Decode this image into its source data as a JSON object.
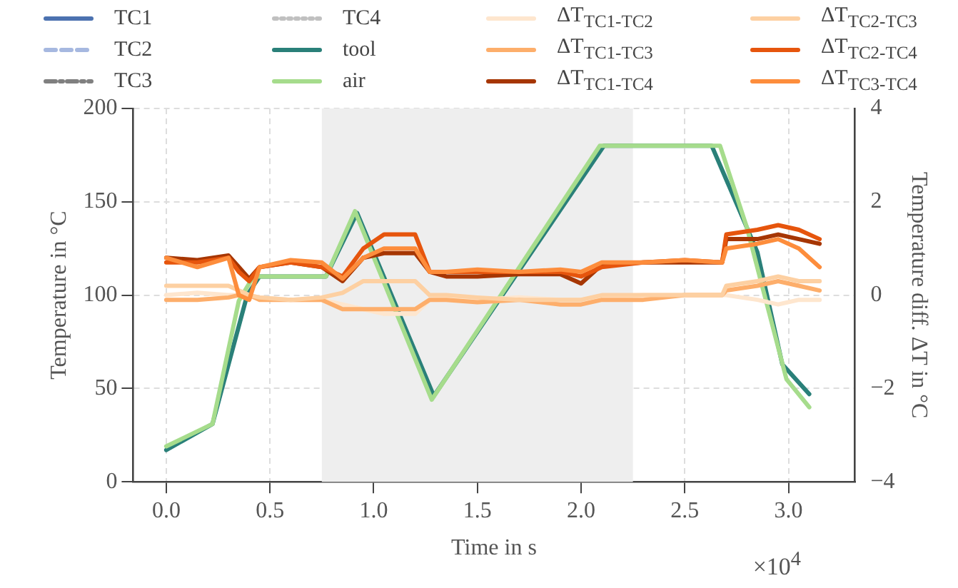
{
  "chart_data": {
    "type": "line",
    "xlabel": "Time in s",
    "ylabel": "Temperature in °C",
    "y2label": "Temperature diff. ΔT in °C",
    "xlim": [
      -0.16,
      3.32
    ],
    "xticks": [
      {
        "value": 0,
        "label": "0.0"
      },
      0.5,
      {
        "value": 1,
        "label": "1.0"
      },
      1.5,
      {
        "value": 2,
        "label": "2.0"
      },
      2.5,
      {
        "value": 3,
        "label": "3.0"
      }
    ],
    "ylim": [
      0,
      200
    ],
    "yticks": [
      0,
      50,
      100,
      150,
      200
    ],
    "y2lim": [
      -4,
      4
    ],
    "y2ticks": [
      -4,
      -2,
      0,
      2,
      4
    ],
    "grid": true,
    "legend": "top",
    "marker": "none",
    "annotations": [
      "×10$^{4}$"
    ],
    "bands": [
      {
        "axis": "x",
        "from": 0.75,
        "to": 2.25,
        "color": "#eeeeee"
      }
    ],
    "series": [
      {
        "name": "TC1",
        "color": "#4c72b0",
        "line_style": "solid"
      },
      {
        "name": "TC2",
        "color": "#a6b8e0",
        "line_style": "dashed"
      },
      {
        "name": "TC3",
        "color": "#808080",
        "line_style": "dashdot"
      },
      {
        "name": "TC4",
        "color": "#c0c0c0",
        "line_style": "dotted"
      },
      {
        "name": "tool",
        "color": "#2a8079",
        "line_style": "solid",
        "x": [
          0,
          0.223,
          0.39,
          0.45,
          0.77,
          0.92,
          1.29,
          2.11,
          2.63,
          2.85,
          2.97,
          3.1
        ],
        "values": [
          17,
          31,
          100,
          110,
          110,
          144,
          46,
          180,
          180,
          123,
          63,
          47
        ]
      },
      {
        "name": "air",
        "color": "#a6dc8c",
        "line_style": "solid",
        "x": [
          0,
          0.223,
          0.35,
          0.42,
          0.77,
          0.91,
          1.28,
          2.09,
          2.67,
          2.8,
          2.99,
          3.1
        ],
        "values": [
          19,
          31,
          97,
          110,
          110,
          145,
          44,
          180,
          180,
          136,
          55,
          40
        ]
      },
      {
        "name": "ΔT$_{TC1-TC2}$",
        "color": "#fee6ce",
        "line_style": "solid",
        "axis": "y2",
        "x": [
          0,
          0.15,
          0.3,
          0.35,
          0.4,
          0.45,
          0.6,
          0.75,
          0.85,
          0.95,
          1.05,
          1.2,
          1.27,
          1.35,
          1.5,
          1.7,
          1.9,
          2.0,
          2.1,
          2.3,
          2.5,
          2.68,
          2.7,
          2.85,
          2.95,
          3.05,
          3.15
        ],
        "values": [
          0.0,
          0.05,
          0.0,
          0.0,
          0.0,
          -0.05,
          -0.1,
          -0.1,
          -0.2,
          -0.3,
          -0.4,
          -0.4,
          -0.1,
          -0.05,
          -0.1,
          -0.05,
          -0.1,
          -0.1,
          -0.05,
          0.0,
          0.0,
          0.0,
          0.0,
          -0.1,
          -0.2,
          -0.1,
          -0.1
        ]
      },
      {
        "name": "ΔT$_{TC1-TC3}$",
        "color": "#fdae6b",
        "line_style": "solid",
        "axis": "y2",
        "x": [
          0,
          0.15,
          0.3,
          0.35,
          0.4,
          0.45,
          0.6,
          0.75,
          0.85,
          0.95,
          1.05,
          1.2,
          1.27,
          1.35,
          1.5,
          1.7,
          1.9,
          2.0,
          2.1,
          2.3,
          2.5,
          2.68,
          2.7,
          2.85,
          2.95,
          3.05,
          3.15
        ],
        "values": [
          -0.1,
          -0.1,
          -0.05,
          0.0,
          0.0,
          -0.1,
          -0.1,
          -0.1,
          -0.3,
          -0.3,
          -0.3,
          -0.3,
          -0.1,
          -0.1,
          -0.15,
          -0.1,
          -0.2,
          -0.2,
          -0.1,
          -0.1,
          0.0,
          0.0,
          0.1,
          0.2,
          0.3,
          0.2,
          0.1
        ]
      },
      {
        "name": "ΔT$_{TC1-TC4}$",
        "color": "#a63603",
        "line_style": "solid",
        "axis": "y2",
        "x": [
          0,
          0.15,
          0.3,
          0.35,
          0.4,
          0.45,
          0.6,
          0.75,
          0.85,
          0.95,
          1.05,
          1.2,
          1.27,
          1.35,
          1.5,
          1.7,
          1.9,
          2.0,
          2.1,
          2.3,
          2.5,
          2.68,
          2.7,
          2.85,
          2.95,
          3.05,
          3.15
        ],
        "values": [
          0.8,
          0.75,
          0.85,
          0.6,
          0.35,
          0.6,
          0.7,
          0.6,
          0.3,
          0.8,
          0.9,
          0.9,
          0.5,
          0.4,
          0.4,
          0.45,
          0.45,
          0.25,
          0.65,
          0.7,
          0.7,
          0.7,
          1.2,
          1.2,
          1.3,
          1.2,
          1.1
        ]
      },
      {
        "name": "ΔT$_{TC2-TC3}$",
        "color": "#fdd0a2",
        "line_style": "solid",
        "axis": "y2",
        "x": [
          0,
          0.15,
          0.3,
          0.35,
          0.4,
          0.45,
          0.6,
          0.75,
          0.85,
          0.95,
          1.05,
          1.2,
          1.27,
          1.35,
          1.5,
          1.7,
          1.9,
          2.0,
          2.1,
          2.3,
          2.5,
          2.68,
          2.7,
          2.85,
          2.95,
          3.05,
          3.15
        ],
        "values": [
          0.2,
          0.2,
          0.2,
          0.1,
          0.0,
          -0.05,
          -0.1,
          -0.05,
          0.05,
          0.3,
          0.3,
          0.3,
          0.0,
          0.0,
          -0.05,
          -0.1,
          -0.1,
          -0.1,
          0.0,
          0.0,
          0.0,
          0.0,
          0.2,
          0.3,
          0.4,
          0.3,
          0.3
        ]
      },
      {
        "name": "ΔT$_{TC2-TC4}$",
        "color": "#e6550d",
        "line_style": "solid",
        "axis": "y2",
        "x": [
          0,
          0.15,
          0.3,
          0.35,
          0.4,
          0.45,
          0.6,
          0.75,
          0.85,
          0.95,
          1.05,
          1.2,
          1.27,
          1.35,
          1.5,
          1.7,
          1.9,
          2.0,
          2.1,
          2.3,
          2.5,
          2.68,
          2.7,
          2.85,
          2.95,
          3.05,
          3.15
        ],
        "values": [
          0.7,
          0.7,
          0.8,
          0.5,
          0.3,
          0.6,
          0.7,
          0.6,
          0.4,
          1.0,
          1.3,
          1.3,
          0.5,
          0.5,
          0.5,
          0.5,
          0.5,
          0.4,
          0.6,
          0.7,
          0.75,
          0.7,
          1.3,
          1.4,
          1.5,
          1.4,
          1.2
        ]
      },
      {
        "name": "ΔT$_{TC3-TC4}$",
        "color": "#fd8d3c",
        "line_style": "solid",
        "axis": "y2",
        "x": [
          0,
          0.15,
          0.3,
          0.35,
          0.4,
          0.45,
          0.6,
          0.75,
          0.85,
          0.95,
          1.05,
          1.2,
          1.27,
          1.35,
          1.5,
          1.7,
          1.9,
          2.0,
          2.1,
          2.3,
          2.5,
          2.68,
          2.7,
          2.85,
          2.95,
          3.05,
          3.15
        ],
        "values": [
          0.8,
          0.6,
          0.8,
          0.0,
          -0.1,
          0.6,
          0.75,
          0.7,
          0.35,
          0.8,
          1.0,
          1.0,
          0.5,
          0.5,
          0.55,
          0.5,
          0.55,
          0.5,
          0.7,
          0.7,
          0.75,
          0.7,
          1.0,
          1.1,
          1.2,
          1.0,
          0.6
        ]
      }
    ]
  }
}
